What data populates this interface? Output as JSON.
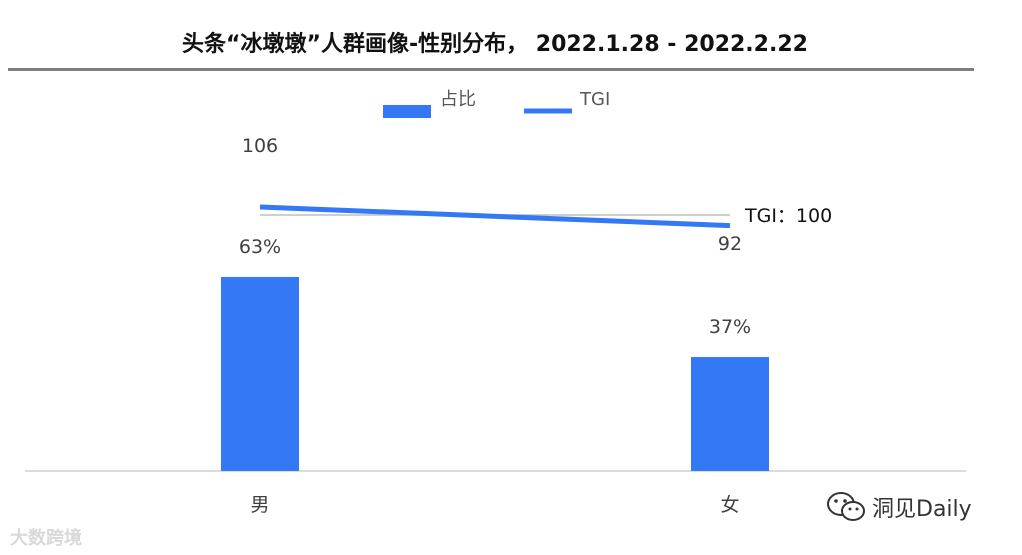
{
  "chart_data": {
    "type": "bar",
    "title": "头条“冰墩墩”人群画像-性别分布， 2022.1.28 - 2022.2.22",
    "categories": [
      "男",
      "女"
    ],
    "series": [
      {
        "name": "占比",
        "type": "bar",
        "values": [
          63,
          37
        ],
        "value_labels": [
          "63%",
          "37%"
        ],
        "color": "#3478f6"
      },
      {
        "name": "TGI",
        "type": "line",
        "values": [
          106,
          92
        ],
        "value_labels": [
          "106",
          "92"
        ],
        "color": "#3478f6"
      }
    ],
    "reference_line": {
      "label": "TGI：100",
      "value": 100,
      "color": "#bfbfbf"
    },
    "legend_position": "top-center",
    "grid": false,
    "bar_ylim": [
      0,
      100
    ],
    "line_ylim": [
      0,
      100
    ]
  },
  "watermarks": {
    "left": "大数跨境",
    "right": "洞见Daily"
  },
  "icons": {
    "wechat": "wechat-icon"
  }
}
